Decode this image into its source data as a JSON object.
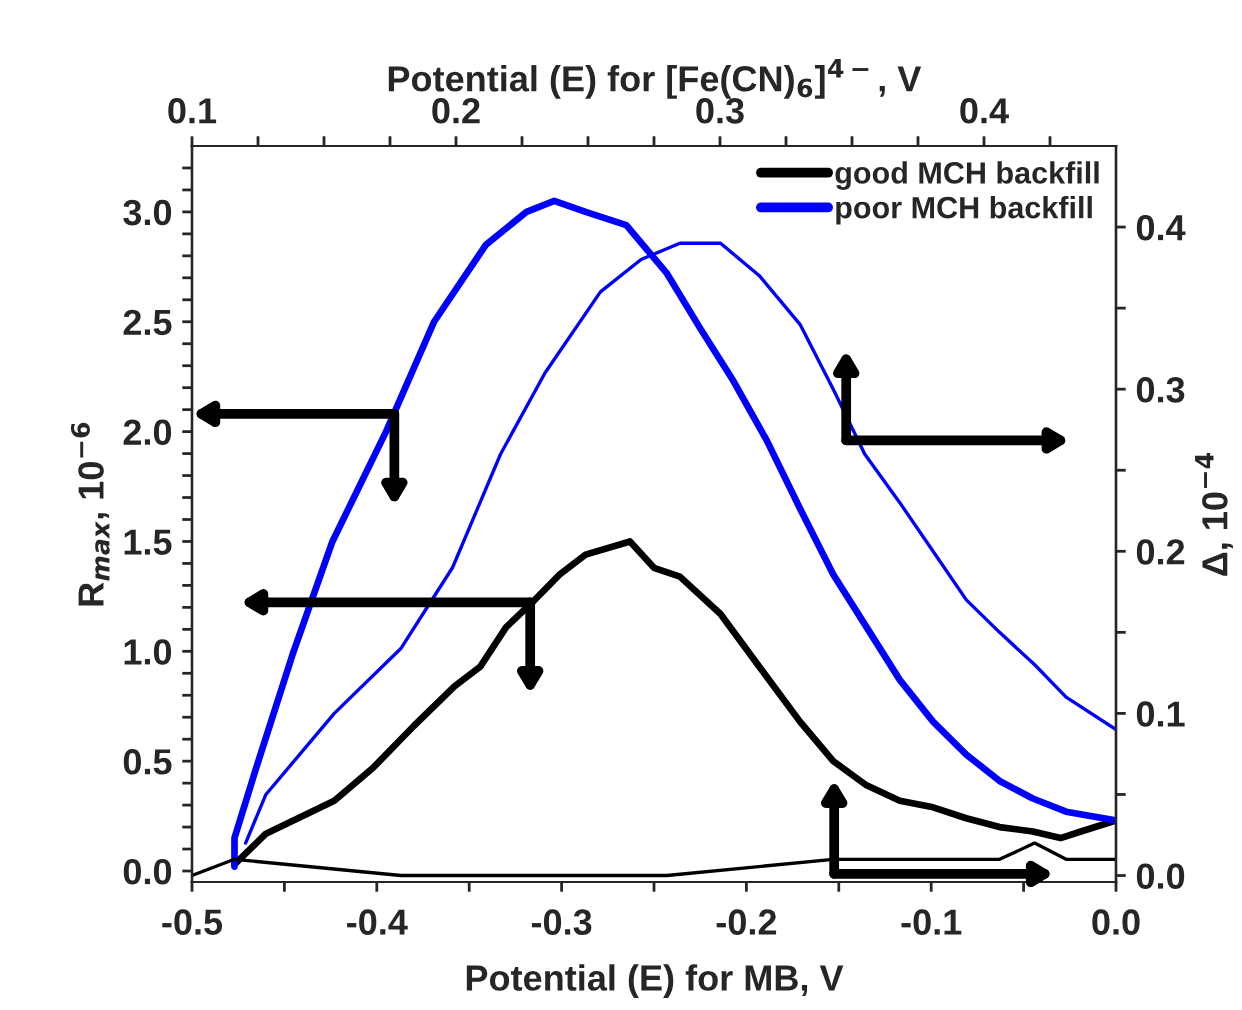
{
  "chart_data": {
    "type": "line",
    "xlabel": "Potential (E) for MB, V",
    "x2label": "Potential (E) for [Fe(CN)$_{6}$]$^{4−}$, V",
    "ylabel": "R$_{max}$, 10$^{−6}$",
    "y2label": "Δ, 10$^{−4}$",
    "xlim": [
      -0.5,
      0.0
    ],
    "xticks": [
      -0.5,
      {
        "value": -0.45,
        "label": null
      },
      -0.4,
      {
        "value": -0.35,
        "label": null
      },
      -0.3,
      {
        "value": -0.25,
        "label": null
      },
      -0.2,
      {
        "value": -0.15,
        "label": null
      },
      -0.1,
      {
        "value": -0.05,
        "label": null
      },
      {
        "value": 0.0,
        "label": "0.0"
      }
    ],
    "x2lim": [
      0.1,
      0.45
    ],
    "x2ticks": [
      0.1,
      {
        "value": 0.125,
        "label": null
      },
      {
        "value": 0.15,
        "label": null
      },
      {
        "value": 0.175,
        "label": null
      },
      0.2,
      {
        "value": 0.225,
        "label": null
      },
      {
        "value": 0.25,
        "label": null
      },
      {
        "value": 0.275,
        "label": null
      },
      0.3,
      {
        "value": 0.325,
        "label": null
      },
      {
        "value": 0.35,
        "label": null
      },
      {
        "value": 0.375,
        "label": null
      },
      0.4,
      {
        "value": 0.425,
        "label": null
      }
    ],
    "ylim": [
      -0.05,
      3.3
    ],
    "yticks": [
      {
        "value": 0,
        "label": "0.0"
      },
      {
        "value": 0.1,
        "label": null
      },
      {
        "value": 0.2,
        "label": null
      },
      {
        "value": 0.3,
        "label": null
      },
      {
        "value": 0.4,
        "label": null
      },
      0.5,
      {
        "value": 0.6,
        "label": null
      },
      {
        "value": 0.7,
        "label": null
      },
      {
        "value": 0.8,
        "label": null
      },
      {
        "value": 0.9,
        "label": null
      },
      {
        "value": 1,
        "label": "1.0"
      },
      {
        "value": 1.1,
        "label": null
      },
      {
        "value": 1.2,
        "label": null
      },
      {
        "value": 1.3,
        "label": null
      },
      {
        "value": 1.4,
        "label": null
      },
      1.5,
      {
        "value": 1.6,
        "label": null
      },
      {
        "value": 1.7,
        "label": null
      },
      {
        "value": 1.8,
        "label": null
      },
      {
        "value": 1.9,
        "label": null
      },
      {
        "value": 2,
        "label": "2.0"
      },
      {
        "value": 2.1,
        "label": null
      },
      {
        "value": 2.2,
        "label": null
      },
      {
        "value": 2.3,
        "label": null
      },
      {
        "value": 2.4,
        "label": null
      },
      2.5,
      {
        "value": 2.6,
        "label": null
      },
      {
        "value": 2.7,
        "label": null
      },
      {
        "value": 2.8,
        "label": null
      },
      {
        "value": 2.9,
        "label": null
      },
      {
        "value": 3,
        "label": "3.0"
      },
      {
        "value": 3.1,
        "label": null
      },
      {
        "value": 3.2,
        "label": null
      }
    ],
    "y2lim": [
      -0.004,
      0.45
    ],
    "y2ticks": [
      {
        "value": 0,
        "label": "0.0"
      },
      {
        "value": 0.05,
        "label": null
      },
      0.1,
      {
        "value": 0.15,
        "label": null
      },
      0.2,
      {
        "value": 0.25,
        "label": null
      },
      0.3,
      {
        "value": 0.35,
        "label": null
      },
      0.4
    ],
    "grid": false,
    "legend": "top right",
    "series": [
      {
        "name": "good MCH backfill",
        "color": "#000000",
        "x": [
          -0.477,
          -0.46,
          -0.423,
          -0.402,
          -0.38,
          -0.358,
          -0.344,
          -0.33,
          -0.315,
          -0.301,
          -0.287,
          -0.263,
          -0.25,
          -0.236,
          -0.214,
          -0.193,
          -0.171,
          -0.153,
          -0.135,
          -0.117,
          -0.099,
          -0.081,
          -0.063,
          -0.045,
          -0.03,
          -0.019,
          0.0
        ],
        "values": [
          0.03,
          0.17,
          0.32,
          0.47,
          0.66,
          0.84,
          0.93,
          1.11,
          1.23,
          1.35,
          1.44,
          1.5,
          1.38,
          1.34,
          1.17,
          0.93,
          0.68,
          0.5,
          0.39,
          0.32,
          0.29,
          0.24,
          0.2,
          0.18,
          0.15,
          0.18,
          0.23
        ]
      },
      {
        "name": "poor MCH backfill",
        "color": "#0000ff",
        "x": [
          -0.477,
          -0.477,
          -0.466,
          -0.445,
          -0.424,
          -0.395,
          -0.369,
          -0.341,
          -0.319,
          -0.304,
          -0.287,
          -0.265,
          -0.243,
          -0.225,
          -0.207,
          -0.189,
          -0.171,
          -0.153,
          -0.135,
          -0.117,
          -0.099,
          -0.081,
          -0.063,
          -0.045,
          -0.027,
          0.0
        ],
        "values": [
          0.02,
          0.15,
          0.45,
          1.0,
          1.5,
          2.0,
          2.5,
          2.85,
          3.0,
          3.05,
          3.0,
          2.94,
          2.72,
          2.47,
          2.23,
          1.96,
          1.65,
          1.35,
          1.11,
          0.87,
          0.68,
          0.53,
          0.41,
          0.33,
          0.27,
          0.23
        ]
      },
      {
        "color": "#0000ff",
        "axis": "y2",
        "x": [
          -0.471,
          -0.46,
          -0.423,
          -0.387,
          -0.359,
          -0.333,
          -0.309,
          -0.279,
          -0.257,
          -0.236,
          -0.214,
          -0.193,
          -0.171,
          -0.153,
          -0.136,
          -0.117,
          -0.099,
          -0.081,
          -0.063,
          -0.044,
          -0.027,
          0.0
        ],
        "values": [
          0.02,
          0.05,
          0.1,
          0.14,
          0.19,
          0.26,
          0.31,
          0.36,
          0.38,
          0.39,
          0.39,
          0.37,
          0.34,
          0.3,
          0.26,
          0.23,
          0.2,
          0.17,
          0.15,
          0.13,
          0.11,
          0.09
        ]
      },
      {
        "color": "#000000",
        "axis": "y2",
        "x": [
          -0.5,
          -0.477,
          -0.387,
          -0.351,
          -0.316,
          -0.261,
          -0.243,
          -0.153,
          -0.099,
          -0.063,
          -0.044,
          -0.027,
          0.0
        ],
        "values": [
          0.0,
          0.01,
          0.0,
          0.0,
          0.0,
          0.0,
          0.0,
          0.01,
          0.01,
          0.01,
          0.02,
          0.01,
          0.01
        ]
      }
    ]
  }
}
